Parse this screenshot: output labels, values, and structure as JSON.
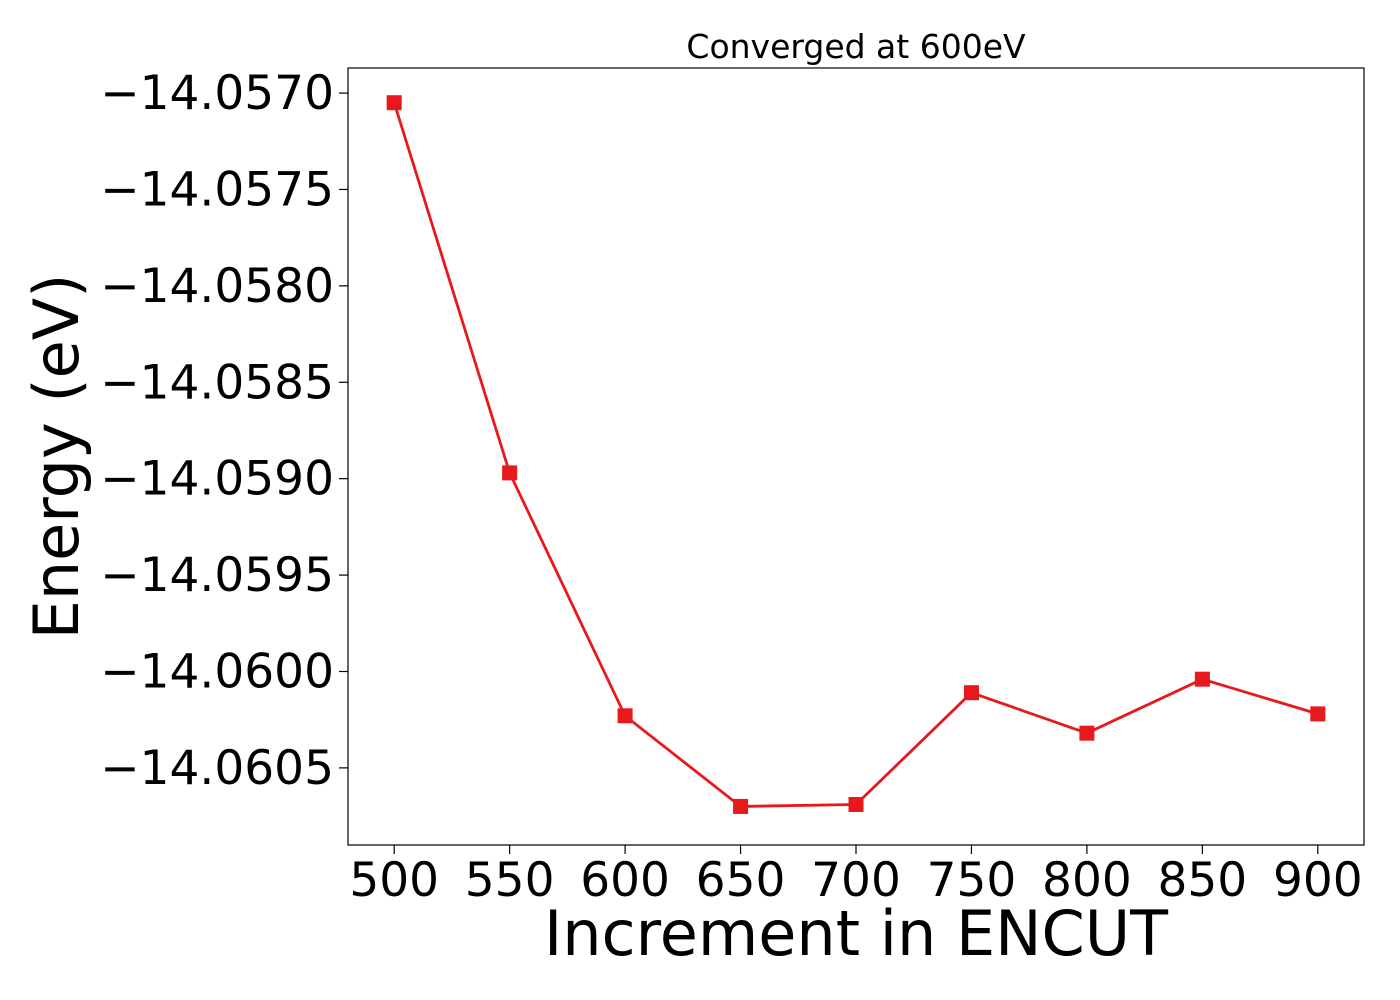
{
  "chart_data": {
    "type": "line",
    "title": "Converged at 600eV",
    "xlabel": "Increment in ENCUT",
    "ylabel": "Energy (eV)",
    "x": [
      500,
      550,
      600,
      650,
      700,
      750,
      800,
      850,
      900
    ],
    "series": [
      {
        "values": [
          -14.05705,
          -14.05897,
          -14.06023,
          -14.0607,
          -14.06069,
          -14.06011,
          -14.06032,
          -14.06004,
          -14.06022
        ],
        "color": "#e8191c",
        "marker": "square"
      }
    ],
    "xlim": [
      480,
      920
    ],
    "ylim": [
      -14.0609,
      -14.05687
    ],
    "xticks": [
      500,
      550,
      600,
      650,
      700,
      750,
      800,
      850,
      900
    ],
    "xtick_labels": [
      "500",
      "550",
      "600",
      "650",
      "700",
      "750",
      "800",
      "850",
      "900"
    ],
    "yticks": [
      -14.057,
      -14.0575,
      -14.058,
      -14.0585,
      -14.059,
      -14.0595,
      -14.06,
      -14.0605
    ],
    "ytick_labels": [
      "−14.0570",
      "−14.0575",
      "−14.0580",
      "−14.0585",
      "−14.0590",
      "−14.0595",
      "−14.0600",
      "−14.0605"
    ],
    "grid": false,
    "legend": "none"
  }
}
